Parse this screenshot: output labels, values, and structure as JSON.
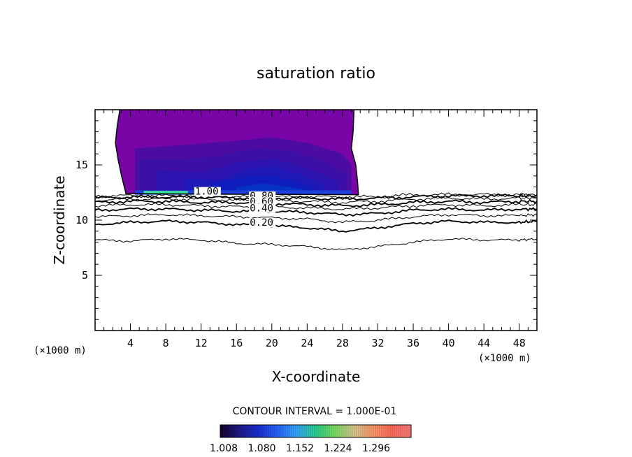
{
  "chart_data": {
    "type": "contour",
    "title": "saturation ratio",
    "xlabel": "X-coordinate",
    "ylabel": "Z-coordinate",
    "x_unit": "(×1000 m)",
    "y_unit": "(×1000 m)",
    "xlim": [
      0,
      50
    ],
    "ylim": [
      0,
      20
    ],
    "x_ticks": [
      4,
      8,
      12,
      16,
      20,
      24,
      28,
      32,
      36,
      40,
      44,
      48
    ],
    "y_ticks": [
      5,
      10,
      15
    ],
    "contour_interval_text": "CONTOUR INTERVAL = 1.000E-01",
    "contour_lines": [
      {
        "level": 0.1,
        "label": "",
        "points": [
          [
            0,
            8.2
          ],
          [
            4,
            8.1
          ],
          [
            8,
            8.3
          ],
          [
            12,
            8.2
          ],
          [
            16,
            7.9
          ],
          [
            20,
            7.8
          ],
          [
            24,
            7.6
          ],
          [
            28,
            7.3
          ],
          [
            32,
            7.6
          ],
          [
            36,
            8.0
          ],
          [
            40,
            8.3
          ],
          [
            44,
            8.2
          ],
          [
            48,
            8.2
          ],
          [
            50,
            8.3
          ]
        ]
      },
      {
        "level": 0.2,
        "label": "0.20",
        "points": [
          [
            0,
            9.6
          ],
          [
            4,
            9.8
          ],
          [
            8,
            9.9
          ],
          [
            12,
            9.8
          ],
          [
            16,
            9.6
          ],
          [
            20,
            9.5
          ],
          [
            24,
            9.3
          ],
          [
            28,
            9.0
          ],
          [
            32,
            9.3
          ],
          [
            36,
            9.7
          ],
          [
            40,
            9.9
          ],
          [
            44,
            9.8
          ],
          [
            48,
            9.8
          ],
          [
            50,
            9.9
          ]
        ]
      },
      {
        "level": 0.3,
        "label": "",
        "points": [
          [
            0,
            10.3
          ],
          [
            4,
            10.4
          ],
          [
            8,
            10.5
          ],
          [
            12,
            10.4
          ],
          [
            16,
            10.3
          ],
          [
            20,
            10.2
          ],
          [
            24,
            10.1
          ],
          [
            28,
            9.8
          ],
          [
            32,
            10.0
          ],
          [
            36,
            10.3
          ],
          [
            40,
            10.5
          ],
          [
            44,
            10.4
          ],
          [
            48,
            10.4
          ],
          [
            50,
            10.5
          ]
        ]
      },
      {
        "level": 0.4,
        "label": "0.40",
        "points": [
          [
            0,
            10.9
          ],
          [
            4,
            11.0
          ],
          [
            8,
            11.0
          ],
          [
            12,
            10.9
          ],
          [
            16,
            10.8
          ],
          [
            20,
            10.8
          ],
          [
            24,
            10.7
          ],
          [
            28,
            10.5
          ],
          [
            32,
            10.6
          ],
          [
            36,
            10.9
          ],
          [
            40,
            11.0
          ],
          [
            44,
            10.9
          ],
          [
            48,
            11.0
          ],
          [
            50,
            11.0
          ]
        ]
      },
      {
        "level": 0.5,
        "label": "",
        "points": [
          [
            0,
            11.3
          ],
          [
            4,
            11.4
          ],
          [
            8,
            11.4
          ],
          [
            12,
            11.3
          ],
          [
            16,
            11.2
          ],
          [
            20,
            11.2
          ],
          [
            24,
            11.1
          ],
          [
            28,
            11.0
          ],
          [
            32,
            11.1
          ],
          [
            36,
            11.3
          ],
          [
            40,
            11.4
          ],
          [
            44,
            11.3
          ],
          [
            48,
            11.4
          ],
          [
            50,
            11.4
          ]
        ]
      },
      {
        "level": 0.6,
        "label": "0.60",
        "points": [
          [
            0,
            11.6
          ],
          [
            4,
            11.7
          ],
          [
            8,
            11.7
          ],
          [
            12,
            11.6
          ],
          [
            16,
            11.6
          ],
          [
            20,
            11.5
          ],
          [
            24,
            11.4
          ],
          [
            28,
            11.3
          ],
          [
            32,
            11.4
          ],
          [
            36,
            11.6
          ],
          [
            40,
            11.7
          ],
          [
            44,
            11.6
          ],
          [
            48,
            11.7
          ],
          [
            50,
            11.7
          ]
        ]
      },
      {
        "level": 0.7,
        "label": "",
        "points": [
          [
            0,
            11.8
          ],
          [
            4,
            11.9
          ],
          [
            8,
            11.9
          ],
          [
            12,
            11.9
          ],
          [
            16,
            11.8
          ],
          [
            20,
            11.8
          ],
          [
            24,
            11.7
          ],
          [
            28,
            11.6
          ],
          [
            32,
            11.7
          ],
          [
            36,
            11.9
          ],
          [
            40,
            12.0
          ],
          [
            44,
            11.9
          ],
          [
            48,
            12.0
          ],
          [
            50,
            12.0
          ]
        ]
      },
      {
        "level": 0.8,
        "label": "0.80",
        "points": [
          [
            0,
            12.0
          ],
          [
            4,
            12.1
          ],
          [
            8,
            12.1
          ],
          [
            12,
            12.1
          ],
          [
            16,
            12.0
          ],
          [
            20,
            12.0
          ],
          [
            24,
            12.0
          ],
          [
            28,
            11.9
          ],
          [
            32,
            12.0
          ],
          [
            36,
            12.1
          ],
          [
            40,
            12.2
          ],
          [
            44,
            12.2
          ],
          [
            48,
            12.2
          ],
          [
            50,
            12.2
          ]
        ]
      },
      {
        "level": 0.9,
        "label": "",
        "points": [
          [
            0,
            12.2
          ],
          [
            4,
            12.2
          ],
          [
            8,
            12.2
          ],
          [
            12,
            12.2
          ],
          [
            16,
            12.1
          ],
          [
            20,
            12.1
          ],
          [
            24,
            12.1
          ],
          [
            28,
            12.1
          ],
          [
            32,
            12.1
          ],
          [
            36,
            12.3
          ],
          [
            40,
            12.3
          ],
          [
            44,
            12.3
          ],
          [
            48,
            12.3
          ],
          [
            50,
            12.3
          ]
        ]
      }
    ],
    "labels": [
      {
        "text": "1.00",
        "x": 11.3,
        "y": 12.3
      },
      {
        "text": "0.80",
        "x": 17.5,
        "y": 11.9
      },
      {
        "text": "0.60",
        "x": 17.5,
        "y": 11.4
      },
      {
        "text": "0.40",
        "x": 17.5,
        "y": 10.8
      },
      {
        "text": "0.20",
        "x": 17.5,
        "y": 9.5
      }
    ],
    "supersat_region": {
      "outline": [
        [
          2.8,
          20
        ],
        [
          2.5,
          18.5
        ],
        [
          2.3,
          17
        ],
        [
          2.6,
          15.5
        ],
        [
          3.0,
          14
        ],
        [
          3.5,
          12.4
        ],
        [
          29.8,
          12.3
        ],
        [
          29.7,
          13.5
        ],
        [
          29.5,
          15
        ],
        [
          29.0,
          16.5
        ],
        [
          29.2,
          18
        ],
        [
          29.3,
          20
        ]
      ],
      "max_location": [
        6.5,
        12.5
      ],
      "layers": [
        {
          "value": 1.04,
          "color": "#4a0ca0",
          "outline": [
            [
              4.5,
              16.5
            ],
            [
              10,
              16.8
            ],
            [
              16,
              17.2
            ],
            [
              20,
              17.5
            ],
            [
              24,
              17.0
            ],
            [
              28,
              16.0
            ],
            [
              29,
              15.0
            ],
            [
              29,
              12.4
            ],
            [
              4.5,
              12.4
            ]
          ]
        },
        {
          "value": 1.08,
          "color": "#3b10a8",
          "outline": [
            [
              5,
              15.5
            ],
            [
              10,
              15.5
            ],
            [
              14,
              15.8
            ],
            [
              18,
              16.5
            ],
            [
              22,
              16.3
            ],
            [
              26,
              15.3
            ],
            [
              28.5,
              14.2
            ],
            [
              28.5,
              12.4
            ],
            [
              5,
              12.4
            ]
          ]
        },
        {
          "value": 1.12,
          "color": "#2b14b0",
          "outline": [
            [
              7,
              14.5
            ],
            [
              12,
              14.3
            ],
            [
              16,
              15.2
            ],
            [
              20,
              15.6
            ],
            [
              24,
              14.7
            ],
            [
              27.5,
              13.5
            ],
            [
              27.5,
              12.4
            ],
            [
              7,
              12.4
            ]
          ]
        },
        {
          "value": 1.16,
          "color": "#1c18b6",
          "outline": [
            [
              10,
              13.8
            ],
            [
              14,
              13.6
            ],
            [
              17,
              14.6
            ],
            [
              20,
              14.9
            ],
            [
              23,
              14.2
            ],
            [
              26,
              13.2
            ],
            [
              26,
              12.4
            ],
            [
              10,
              12.4
            ]
          ]
        },
        {
          "value": 1.2,
          "color": "#0e1ebc",
          "outline": [
            [
              13,
              13.3
            ],
            [
              17,
              13.9
            ],
            [
              20,
              14.0
            ],
            [
              23,
              13.4
            ],
            [
              25,
              12.8
            ],
            [
              25,
              12.4
            ],
            [
              13,
              12.4
            ]
          ]
        },
        {
          "value": 1.24,
          "color": "#0536c4",
          "outline": [
            [
              16,
              13.0
            ],
            [
              19,
              13.3
            ],
            [
              22,
              13.0
            ],
            [
              24,
              12.7
            ],
            [
              24,
              12.4
            ],
            [
              16,
              12.4
            ]
          ]
        }
      ]
    },
    "colorbar": {
      "ticks": [
        "1.008",
        "1.080",
        "1.152",
        "1.224",
        "1.296"
      ],
      "stops": [
        "#12002a",
        "#1e1a8c",
        "#1a2fd2",
        "#2864ff",
        "#35a8ff",
        "#2ad090",
        "#7ae060",
        "#d8c890",
        "#ff9a6a",
        "#ff6a5a",
        "#ff7f7f"
      ]
    }
  }
}
